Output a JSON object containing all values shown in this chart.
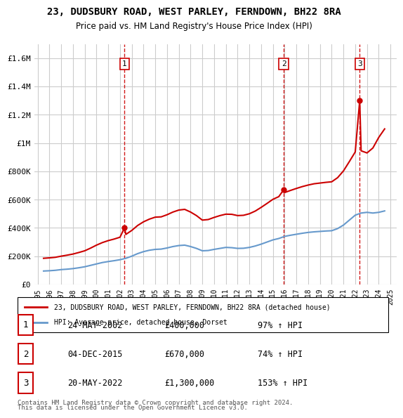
{
  "title": "23, DUDSBURY ROAD, WEST PARLEY, FERNDOWN, BH22 8RA",
  "subtitle": "Price paid vs. HM Land Registry's House Price Index (HPI)",
  "legend_line1": "23, DUDSBURY ROAD, WEST PARLEY, FERNDOWN, BH22 8RA (detached house)",
  "legend_line2": "HPI: Average price, detached house, Dorset",
  "footer1": "Contains HM Land Registry data © Crown copyright and database right 2024.",
  "footer2": "This data is licensed under the Open Government Licence v3.0.",
  "sales": [
    {
      "num": 1,
      "date": "24-MAY-2002",
      "price": 400000,
      "year": 2002.38,
      "hpi_pct": "97% ↑ HPI"
    },
    {
      "num": 2,
      "date": "04-DEC-2015",
      "price": 670000,
      "year": 2015.92,
      "hpi_pct": "74% ↑ HPI"
    },
    {
      "num": 3,
      "date": "20-MAY-2022",
      "price": 1300000,
      "year": 2022.38,
      "hpi_pct": "153% ↑ HPI"
    }
  ],
  "red_line_color": "#cc0000",
  "blue_line_color": "#6699cc",
  "dashed_line_color": "#cc0000",
  "background_color": "#ffffff",
  "grid_color": "#cccccc",
  "ylim": [
    0,
    1700000
  ],
  "xlim": [
    1995,
    2025.5
  ],
  "yticks": [
    0,
    200000,
    400000,
    600000,
    800000,
    1000000,
    1200000,
    1400000,
    1600000
  ],
  "ytick_labels": [
    "£0",
    "£200K",
    "£400K",
    "£600K",
    "£800K",
    "£1M",
    "£1.2M",
    "£1.4M",
    "£1.6M"
  ],
  "xticks": [
    1995,
    1996,
    1997,
    1998,
    1999,
    2000,
    2001,
    2002,
    2003,
    2004,
    2005,
    2006,
    2007,
    2008,
    2009,
    2010,
    2011,
    2012,
    2013,
    2014,
    2015,
    2016,
    2017,
    2018,
    2019,
    2020,
    2021,
    2022,
    2023,
    2024,
    2025
  ],
  "hpi_data": {
    "years": [
      1995.5,
      1996.0,
      1996.5,
      1997.0,
      1997.5,
      1998.0,
      1998.5,
      1999.0,
      1999.5,
      2000.0,
      2000.5,
      2001.0,
      2001.5,
      2002.0,
      2002.5,
      2003.0,
      2003.5,
      2004.0,
      2004.5,
      2005.0,
      2005.5,
      2006.0,
      2006.5,
      2007.0,
      2007.5,
      2008.0,
      2008.5,
      2009.0,
      2009.5,
      2010.0,
      2010.5,
      2011.0,
      2011.5,
      2012.0,
      2012.5,
      2013.0,
      2013.5,
      2014.0,
      2014.5,
      2015.0,
      2015.5,
      2016.0,
      2016.5,
      2017.0,
      2017.5,
      2018.0,
      2018.5,
      2019.0,
      2019.5,
      2020.0,
      2020.5,
      2021.0,
      2021.5,
      2022.0,
      2022.5,
      2023.0,
      2023.5,
      2024.0,
      2024.5
    ],
    "values": [
      95000,
      97000,
      100000,
      105000,
      108000,
      112000,
      118000,
      125000,
      135000,
      145000,
      155000,
      162000,
      168000,
      175000,
      185000,
      200000,
      218000,
      232000,
      242000,
      248000,
      250000,
      258000,
      268000,
      275000,
      278000,
      268000,
      255000,
      238000,
      240000,
      248000,
      255000,
      262000,
      260000,
      255000,
      256000,
      262000,
      272000,
      285000,
      300000,
      315000,
      325000,
      340000,
      348000,
      355000,
      362000,
      368000,
      372000,
      375000,
      378000,
      380000,
      395000,
      420000,
      455000,
      490000,
      505000,
      510000,
      505000,
      510000,
      520000
    ]
  },
  "red_line_data": {
    "years": [
      1995.5,
      1996.0,
      1996.5,
      1997.0,
      1997.5,
      1998.0,
      1998.5,
      1999.0,
      1999.5,
      2000.0,
      2000.5,
      2001.0,
      2001.5,
      2002.0,
      2002.38,
      2002.5,
      2003.0,
      2003.5,
      2004.0,
      2004.5,
      2005.0,
      2005.5,
      2006.0,
      2006.5,
      2007.0,
      2007.5,
      2008.0,
      2008.5,
      2009.0,
      2009.5,
      2010.0,
      2010.5,
      2011.0,
      2011.5,
      2012.0,
      2012.5,
      2013.0,
      2013.5,
      2014.0,
      2014.5,
      2015.0,
      2015.5,
      2015.92,
      2016.0,
      2016.5,
      2017.0,
      2017.5,
      2018.0,
      2018.5,
      2019.0,
      2019.5,
      2020.0,
      2020.5,
      2021.0,
      2021.5,
      2022.0,
      2022.38,
      2022.5,
      2023.0,
      2023.5,
      2024.0,
      2024.5
    ],
    "values": [
      185000,
      188000,
      192000,
      200000,
      207000,
      215000,
      226000,
      238000,
      257000,
      278000,
      296000,
      310000,
      321000,
      334000,
      400000,
      354000,
      382000,
      417000,
      443000,
      462000,
      476000,
      478000,
      493000,
      512000,
      526000,
      531000,
      512000,
      487000,
      455000,
      459000,
      474000,
      487000,
      497000,
      496000,
      487000,
      489000,
      500000,
      519000,
      545000,
      573000,
      602000,
      621000,
      670000,
      650000,
      665000,
      679000,
      692000,
      703000,
      712000,
      717000,
      722000,
      726000,
      755000,
      803000,
      869000,
      937000,
      1300000,
      945000,
      930000,
      965000,
      1040000,
      1100000
    ]
  }
}
